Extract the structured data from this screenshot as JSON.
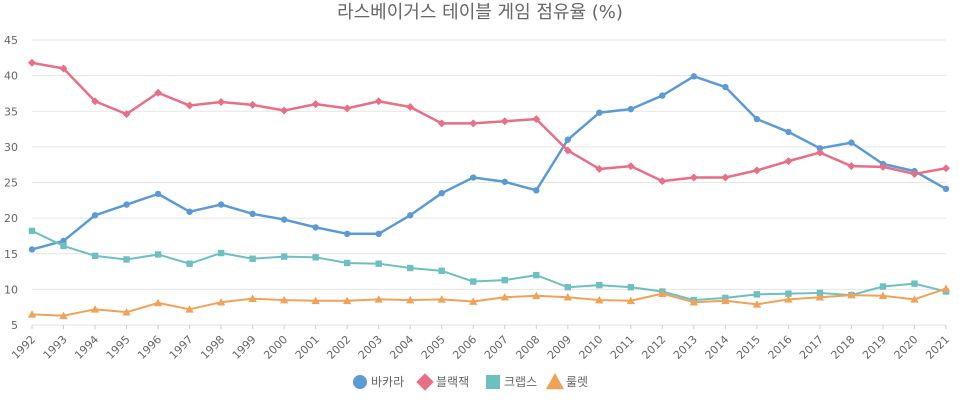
{
  "chart_data": {
    "type": "line",
    "title": "라스베이거스 테이블 게임 점유율 (%)",
    "xlabel": "",
    "ylabel": "",
    "ylim": [
      5,
      45
    ],
    "yticks": [
      5,
      10,
      15,
      20,
      25,
      30,
      35,
      40,
      45
    ],
    "grid": true,
    "legend_position": "bottom",
    "categories": [
      "1992",
      "1993",
      "1994",
      "1995",
      "1996",
      "1997",
      "1998",
      "1999",
      "2000",
      "2001",
      "2002",
      "2003",
      "2004",
      "2005",
      "2006",
      "2007",
      "2008",
      "2009",
      "2010",
      "2011",
      "2012",
      "2013",
      "2014",
      "2015",
      "2016",
      "2017",
      "2018",
      "2019",
      "2020",
      "2021"
    ],
    "series": [
      {
        "name": "바카라",
        "color": "#5b9bd5",
        "marker": "circle",
        "values": [
          15.6,
          16.8,
          20.4,
          21.9,
          23.4,
          20.9,
          21.9,
          20.6,
          19.8,
          18.7,
          17.8,
          17.8,
          20.4,
          23.5,
          25.7,
          25.1,
          23.9,
          31.0,
          34.8,
          35.3,
          37.2,
          39.9,
          38.4,
          33.9,
          32.1,
          29.8,
          30.6,
          27.6,
          26.6,
          24.1
        ]
      },
      {
        "name": "블랙잭",
        "color": "#e76f86",
        "marker": "diamond",
        "values": [
          41.8,
          41.0,
          36.4,
          34.6,
          37.6,
          35.8,
          36.3,
          35.9,
          35.1,
          36.0,
          35.4,
          36.4,
          35.6,
          33.3,
          33.3,
          33.6,
          33.9,
          29.5,
          26.9,
          27.3,
          25.2,
          25.7,
          25.7,
          26.7,
          28.0,
          29.2,
          27.3,
          27.2,
          26.2,
          27.0
        ]
      },
      {
        "name": "크랩스",
        "color": "#6cc0bf",
        "marker": "square",
        "values": [
          18.2,
          16.1,
          14.7,
          14.2,
          14.9,
          13.6,
          15.1,
          14.3,
          14.6,
          14.5,
          13.7,
          13.6,
          13.0,
          12.6,
          11.1,
          11.3,
          12.0,
          10.3,
          10.6,
          10.3,
          9.7,
          8.5,
          8.8,
          9.3,
          9.4,
          9.5,
          9.2,
          10.4,
          10.8,
          9.7
        ]
      },
      {
        "name": "룰렛",
        "color": "#f0a257",
        "marker": "triangle",
        "values": [
          6.5,
          6.3,
          7.2,
          6.8,
          8.1,
          7.2,
          8.2,
          8.7,
          8.5,
          8.4,
          8.4,
          8.6,
          8.5,
          8.6,
          8.3,
          8.9,
          9.1,
          8.9,
          8.5,
          8.4,
          9.4,
          8.2,
          8.4,
          7.9,
          8.6,
          8.9,
          9.2,
          9.1,
          8.6,
          10.1
        ]
      }
    ]
  }
}
